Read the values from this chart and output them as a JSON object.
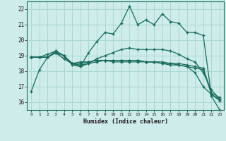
{
  "xlabel": "Humidex (Indice chaleur)",
  "background_color": "#ceecea",
  "line_color": "#1a6b5e",
  "grid_color": "#aad8d3",
  "x_values": [
    0,
    1,
    2,
    3,
    4,
    5,
    6,
    7,
    8,
    9,
    10,
    11,
    12,
    13,
    14,
    15,
    16,
    17,
    18,
    19,
    20,
    21,
    22,
    23
  ],
  "series1": [
    16.7,
    18.1,
    18.9,
    19.3,
    19.0,
    18.4,
    18.3,
    19.2,
    19.9,
    20.5,
    20.4,
    21.1,
    22.2,
    21.0,
    21.3,
    21.0,
    21.7,
    21.2,
    21.1,
    20.5,
    20.5,
    20.3,
    16.4,
    15.5
  ],
  "series2": [
    18.9,
    18.9,
    18.9,
    19.2,
    19.0,
    18.5,
    18.4,
    18.5,
    18.6,
    18.7,
    18.7,
    18.7,
    18.7,
    18.7,
    18.6,
    18.6,
    18.6,
    18.5,
    18.5,
    18.4,
    18.3,
    18.2,
    16.6,
    16.3
  ],
  "series3": [
    18.9,
    18.9,
    19.1,
    19.3,
    19.0,
    18.5,
    18.3,
    18.5,
    18.8,
    19.0,
    19.2,
    19.4,
    19.5,
    19.4,
    19.4,
    19.4,
    19.4,
    19.3,
    19.1,
    18.8,
    18.6,
    17.9,
    16.8,
    16.2
  ],
  "series4": [
    18.9,
    18.9,
    18.9,
    19.2,
    18.8,
    18.5,
    18.5,
    18.6,
    18.7,
    18.7,
    18.6,
    18.6,
    18.6,
    18.6,
    18.6,
    18.6,
    18.5,
    18.4,
    18.4,
    18.3,
    17.9,
    17.0,
    16.5,
    16.1
  ],
  "series5": [
    18.9,
    18.9,
    18.9,
    19.2,
    18.8,
    18.5,
    18.6,
    18.6,
    18.7,
    18.7,
    18.7,
    18.7,
    18.7,
    18.7,
    18.6,
    18.6,
    18.5,
    18.5,
    18.4,
    18.3,
    18.2,
    18.1,
    16.5,
    16.2
  ],
  "ylim": [
    15.5,
    22.5
  ],
  "xlim": [
    -0.5,
    23.5
  ],
  "yticks": [
    16,
    17,
    18,
    19,
    20,
    21,
    22
  ],
  "xticks": [
    0,
    1,
    2,
    3,
    4,
    5,
    6,
    7,
    8,
    9,
    10,
    11,
    12,
    13,
    14,
    15,
    16,
    17,
    18,
    19,
    20,
    21,
    22,
    23
  ]
}
